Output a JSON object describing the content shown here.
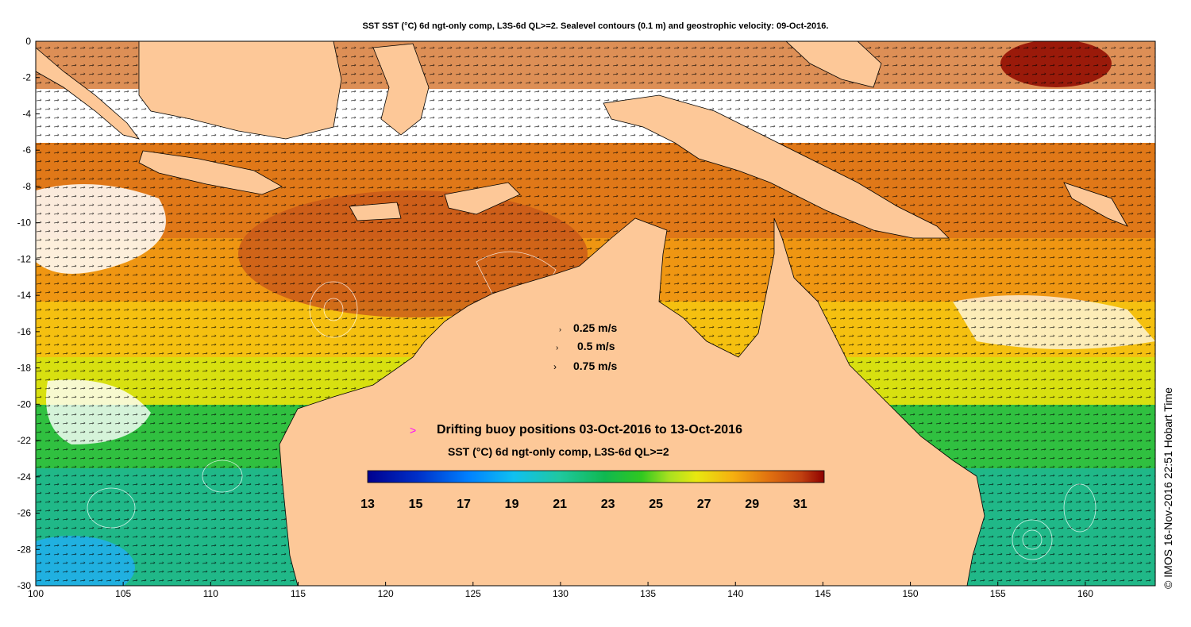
{
  "title": "SST SST (°C) 6d ngt-only comp, L3S-6d QL>=2. Sealevel contours (0.1 m) and geostrophic velocity: 09-Oct-2016.",
  "credit": "© IMOS 16-Nov-2016 22:51 Hobart Time",
  "axes": {
    "x_ticks": [
      "100",
      "105",
      "110",
      "115",
      "120",
      "125",
      "130",
      "135",
      "140",
      "145",
      "150",
      "155",
      "160"
    ],
    "y_ticks": [
      "0",
      "-2",
      "-4",
      "-6",
      "-8",
      "-10",
      "-12",
      "-14",
      "-16",
      "-18",
      "-20",
      "-22",
      "-24",
      "-26",
      "-28",
      "-30"
    ],
    "lon_range": [
      100,
      164
    ],
    "lat_range": [
      -30,
      0
    ]
  },
  "velocity_legend": [
    {
      "label": "0.25 m/s"
    },
    {
      "label": "0.5 m/s"
    },
    {
      "label": "0.75 m/s"
    }
  ],
  "buoy_legend": {
    "marker": ">",
    "label": "Drifting buoy positions 03-Oct-2016 to 13-Oct-2016",
    "color": "#ff00ff"
  },
  "colorbar": {
    "title": "SST (°C) 6d ngt-only comp, L3S-6d QL>=2",
    "ticks": [
      "13",
      "15",
      "17",
      "19",
      "21",
      "23",
      "25",
      "27",
      "29",
      "31"
    ],
    "range": [
      13,
      32
    ]
  },
  "colors": {
    "land": "#fdc898",
    "no_data": "#ffffff"
  }
}
